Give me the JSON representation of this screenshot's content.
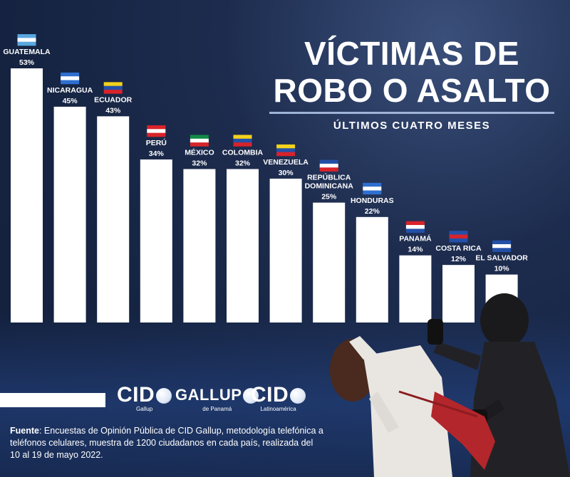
{
  "title": {
    "line1": "VÍCTIMAS DE",
    "line2": "ROBO O ASALTO",
    "subtitle": "ÚLTIMOS CUATRO MESES"
  },
  "colors": {
    "background": "#16254a",
    "bar": "#ffffff",
    "text": "#ffffff",
    "accent": "#9fb4d6"
  },
  "chart_data": {
    "type": "bar",
    "title": "VÍCTIMAS DE ROBO O ASALTO",
    "subtitle": "ÚLTIMOS CUATRO MESES",
    "categories": [
      "GUATEMALA",
      "NICARAGUA",
      "ECUADOR",
      "PERÚ",
      "MÉXICO",
      "COLOMBIA",
      "VENEZUELA",
      "REPÚBLICA DOMINICANA",
      "HONDURAS",
      "PANAMÁ",
      "COSTA RICA",
      "EL SALVADOR"
    ],
    "label_lines": [
      [
        "GUATEMALA"
      ],
      [
        "NICARAGUA"
      ],
      [
        "ECUADOR"
      ],
      [
        "PERÚ"
      ],
      [
        "MÉXICO"
      ],
      [
        "COLOMBIA"
      ],
      [
        "VENEZUELA"
      ],
      [
        "REPÚBLICA",
        "DOMINICANA"
      ],
      [
        "HONDURAS"
      ],
      [
        "PANAMÁ"
      ],
      [
        "COSTA RICA"
      ],
      [
        "EL SALVADOR"
      ]
    ],
    "values": [
      53,
      45,
      43,
      34,
      32,
      32,
      30,
      25,
      22,
      14,
      12,
      10
    ],
    "value_labels": [
      "53%",
      "45%",
      "43%",
      "34%",
      "32%",
      "32%",
      "30%",
      "25%",
      "22%",
      "14%",
      "12%",
      "10%"
    ],
    "flags": [
      "guatemala-flag-icon",
      "nicaragua-flag-icon",
      "ecuador-flag-icon",
      "peru-flag-icon",
      "mexico-flag-icon",
      "colombia-flag-icon",
      "venezuela-flag-icon",
      "dominican-republic-flag-icon",
      "honduras-flag-icon",
      "panama-flag-icon",
      "costa-rica-flag-icon",
      "el-salvador-flag-icon"
    ],
    "ylim": [
      0,
      53
    ],
    "grid": false,
    "legend": "none",
    "unit": "%"
  },
  "logos": {
    "cid_gallup": {
      "main": "CID",
      "sub": "Gallup"
    },
    "gallup_panama": {
      "main": "GALLUP",
      "sub": "de Panamá"
    },
    "cid_latinoamerica": {
      "main": "CID",
      "sub": "Latinoamérica"
    }
  },
  "source": {
    "label": "Fuente",
    "text": ": Encuestas de Opinión Pública de CID Gallup, metodología telefónica a teléfonos celulares, muestra de 1200 ciudadanos en cada país, realizada del 10 al 19 de mayo 2022."
  }
}
